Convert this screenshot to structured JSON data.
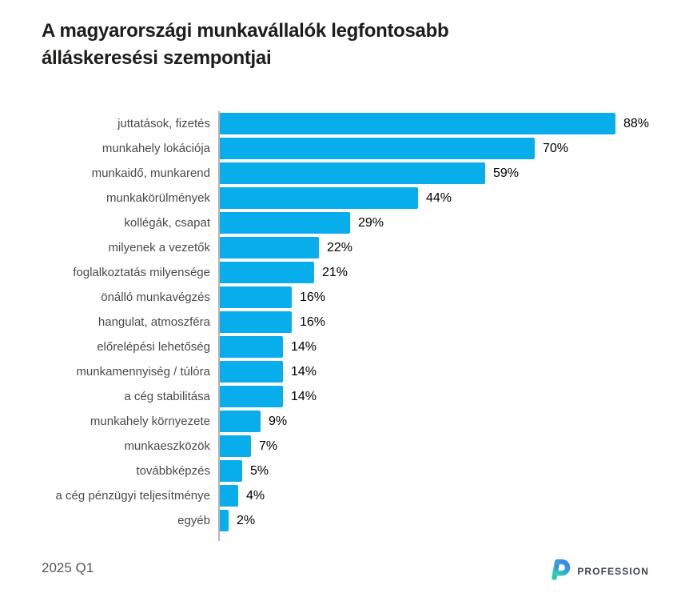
{
  "title": "A magyarországi munkavállalók legfontosabb álláskeresési szempontjai",
  "footer": {
    "period": "2025 Q1",
    "brand": "PROFESSION"
  },
  "colors": {
    "bar": "#07aeeb",
    "axis": "#b3b3b3",
    "title": "#1d1d1b",
    "category_label": "#4a4a49",
    "value_label": "#000000",
    "footer_text": "#575756",
    "brand_text": "#3d4255",
    "logo_teal": "#2ecfae",
    "logo_blue": "#3f7df5"
  },
  "chart_data": {
    "type": "bar",
    "orientation": "horizontal",
    "title": "A magyarországi munkavállalók legfontosabb álláskeresési szempontjai",
    "xlabel": "",
    "ylabel": "",
    "xlim": [
      0,
      100
    ],
    "grid": false,
    "legend": false,
    "value_suffix": "%",
    "categories": [
      "juttatások, fizetés",
      "munkahely lokációja",
      "munkaidő, munkarend",
      "munkakörülmények",
      "kollégák, csapat",
      "milyenek a vezetők",
      "foglalkoztatás milyensége",
      "önálló munkavégzés",
      "hangulat, atmoszféra",
      "előrelépési lehetőség",
      "munkamennyiség / túlóra",
      "a cég stabilitása",
      "munkahely környezete",
      "munkaeszközök",
      "továbbképzés",
      "a cég pénzügyi teljesítménye",
      "egyéb"
    ],
    "values": [
      88,
      70,
      59,
      44,
      29,
      22,
      21,
      16,
      16,
      14,
      14,
      14,
      9,
      7,
      5,
      4,
      2
    ]
  }
}
